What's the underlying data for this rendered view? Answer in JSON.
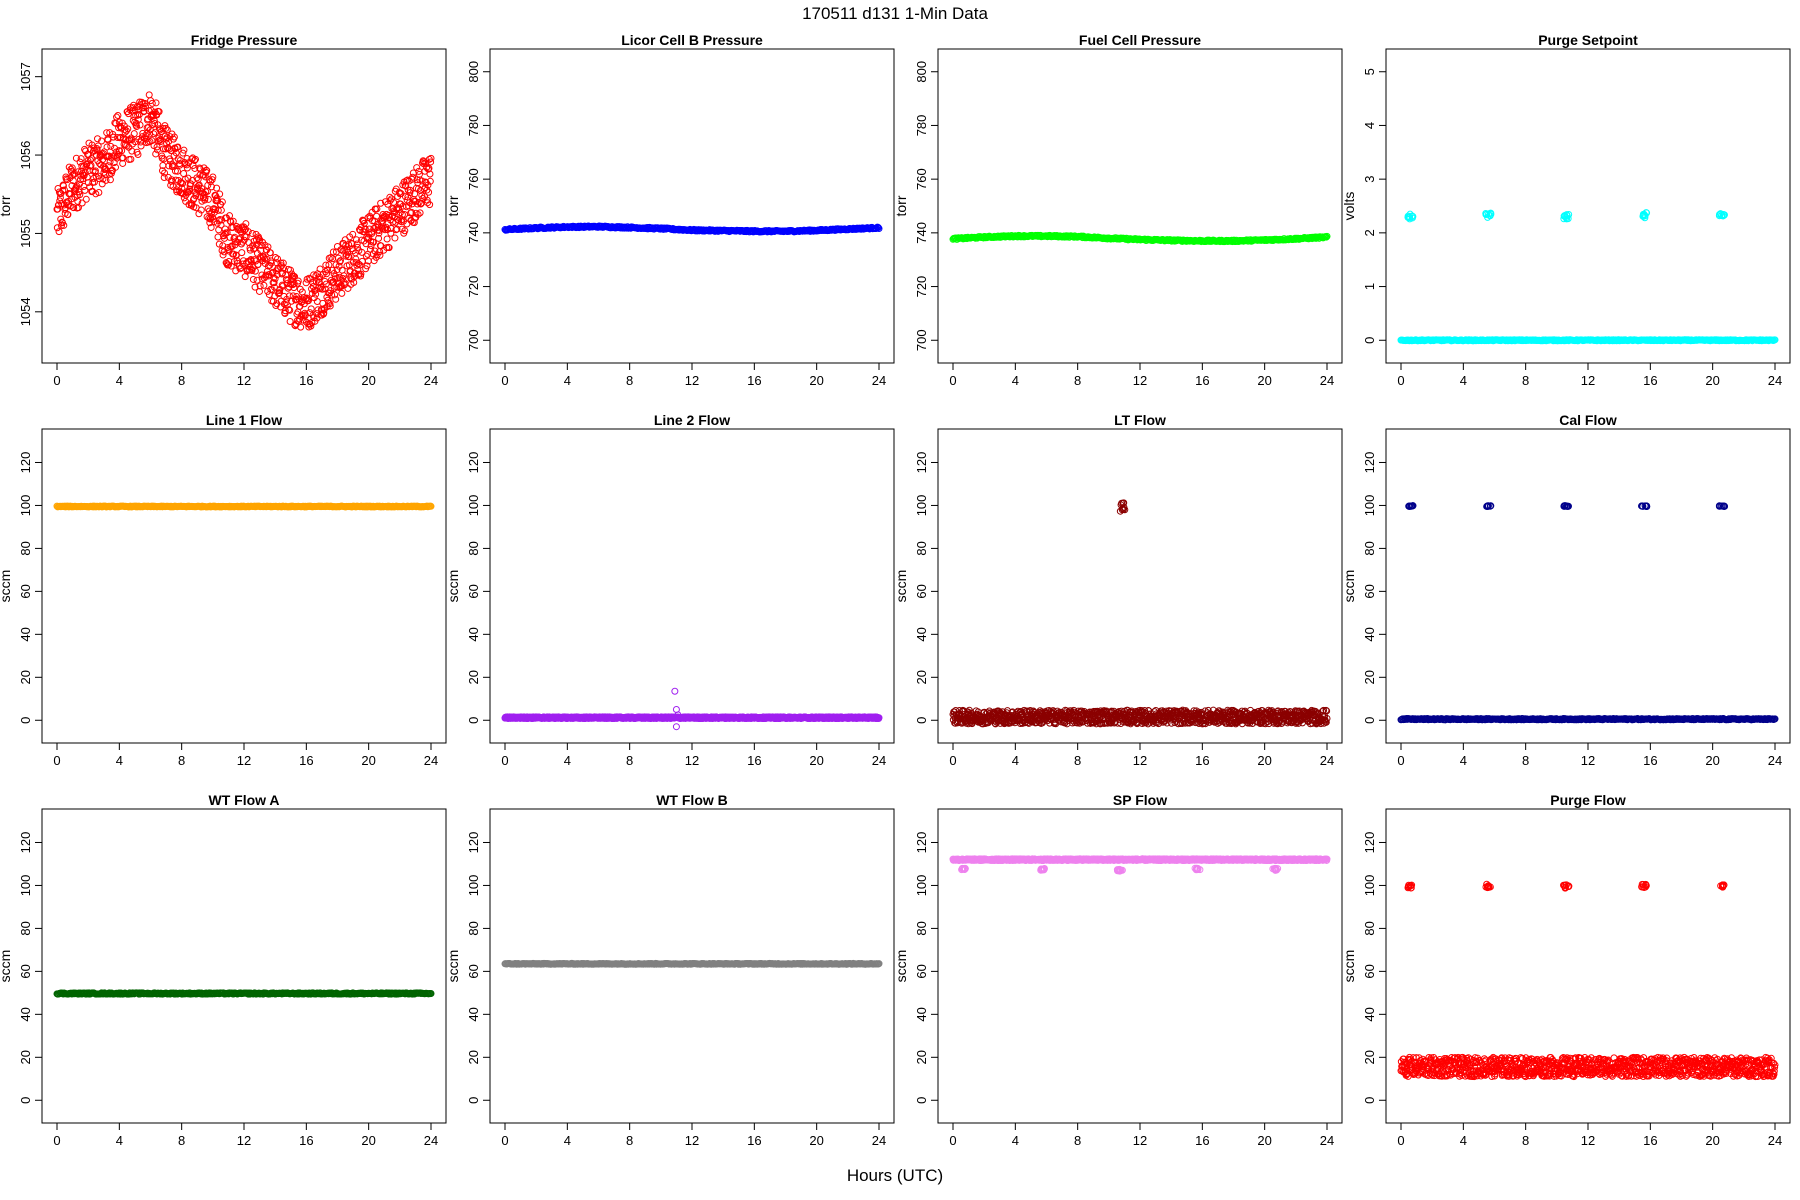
{
  "main_title": "170511    d131    1-Min Data",
  "x_axis_label": "Hours (UTC)",
  "chart_data": [
    {
      "type": "scatter",
      "title": "Fridge Pressure",
      "ylabel": "torr",
      "color": "#ff0000",
      "marker": "open",
      "xlim": [
        0,
        24
      ],
      "xticks": [
        0,
        4,
        8,
        12,
        16,
        20,
        24
      ],
      "ylim": [
        1053.5,
        1057.2
      ],
      "yticks": [
        1054,
        1055,
        1056,
        1057
      ],
      "series": [
        {
          "x": [
            0,
            1,
            2,
            3,
            4,
            5,
            6,
            7,
            8,
            9,
            10,
            11,
            12,
            13,
            14,
            15,
            16,
            17,
            18,
            19,
            20,
            21,
            22,
            23,
            24
          ],
          "y": [
            1055.2,
            1055.6,
            1055.8,
            1055.9,
            1056.2,
            1056.3,
            1056.5,
            1056.0,
            1055.8,
            1055.6,
            1055.4,
            1054.9,
            1054.8,
            1054.6,
            1054.4,
            1054.2,
            1054.1,
            1054.3,
            1054.5,
            1054.7,
            1054.9,
            1055.1,
            1055.3,
            1055.5,
            1055.7
          ],
          "spread": 0.35
        }
      ]
    },
    {
      "type": "scatter",
      "title": "Licor Cell B Pressure",
      "ylabel": "torr",
      "color": "#0000ff",
      "marker": "open",
      "xlim": [
        0,
        24
      ],
      "xticks": [
        0,
        4,
        8,
        12,
        16,
        20,
        24
      ],
      "ylim": [
        696,
        804
      ],
      "yticks": [
        700,
        720,
        740,
        760,
        780,
        800
      ],
      "series": [
        {
          "x": [
            0,
            2,
            4,
            6,
            8,
            10,
            12,
            14,
            16,
            18,
            20,
            22,
            24
          ],
          "y": [
            741.2,
            741.8,
            742.2,
            742.3,
            742.0,
            741.6,
            741.0,
            740.8,
            740.6,
            740.6,
            740.9,
            741.4,
            741.9
          ],
          "spread": 0.3
        }
      ]
    },
    {
      "type": "scatter",
      "title": "Fuel Cell Pressure",
      "ylabel": "torr",
      "color": "#00ff00",
      "marker": "open",
      "xlim": [
        0,
        24
      ],
      "xticks": [
        0,
        4,
        8,
        12,
        16,
        20,
        24
      ],
      "ylim": [
        696,
        804
      ],
      "yticks": [
        700,
        720,
        740,
        760,
        780,
        800
      ],
      "series": [
        {
          "x": [
            0,
            2,
            4,
            6,
            8,
            10,
            12,
            14,
            16,
            18,
            20,
            22,
            24
          ],
          "y": [
            737.8,
            738.4,
            738.8,
            738.8,
            738.6,
            738.0,
            737.5,
            737.2,
            737.0,
            737.0,
            737.3,
            737.8,
            738.4
          ],
          "spread": 0.3
        }
      ]
    },
    {
      "type": "scatter",
      "title": "Purge Setpoint",
      "ylabel": "volts",
      "color": "#00ffff",
      "marker": "open",
      "xlim": [
        0,
        24
      ],
      "xticks": [
        0,
        4,
        8,
        12,
        16,
        20,
        24
      ],
      "ylim": [
        -0.2,
        5.2
      ],
      "yticks": [
        0,
        1,
        2,
        3,
        4,
        5
      ],
      "series": [
        {
          "x": [
            0,
            24
          ],
          "y": [
            0.0,
            0.0
          ],
          "spread": 0.01
        },
        {
          "x": [
            0.6,
            5.6,
            10.6,
            15.6,
            20.6
          ],
          "y": [
            2.3,
            2.32,
            2.3,
            2.33,
            2.32
          ],
          "spread": 0.05,
          "cluster": true
        }
      ]
    },
    {
      "type": "scatter",
      "title": "Line 1 Flow",
      "ylabel": "sccm",
      "color": "#ffa500",
      "marker": "open",
      "xlim": [
        0,
        24
      ],
      "xticks": [
        0,
        4,
        8,
        12,
        16,
        20,
        24
      ],
      "ylim": [
        -5,
        130
      ],
      "yticks": [
        0,
        20,
        40,
        60,
        80,
        100,
        120
      ],
      "series": [
        {
          "x": [
            0,
            24
          ],
          "y": [
            99.5,
            99.5
          ],
          "spread": 0.2
        }
      ]
    },
    {
      "type": "scatter",
      "title": "Line 2 Flow",
      "ylabel": "sccm",
      "color": "#a020f0",
      "marker": "open",
      "xlim": [
        0,
        24
      ],
      "xticks": [
        0,
        4,
        8,
        12,
        16,
        20,
        24
      ],
      "ylim": [
        -5,
        130
      ],
      "yticks": [
        0,
        20,
        40,
        60,
        80,
        100,
        120
      ],
      "series": [
        {
          "x": [
            0,
            24
          ],
          "y": [
            1.2,
            1.2
          ],
          "spread": 0.4
        },
        {
          "x": [
            10.9,
            11.0,
            11.0,
            11.1
          ],
          "y": [
            13.5,
            5.0,
            -3.0,
            2.5
          ],
          "spread": 0,
          "points": true
        }
      ]
    },
    {
      "type": "scatter",
      "title": "LT Flow",
      "ylabel": "sccm",
      "color": "#8b0000",
      "marker": "open",
      "xlim": [
        0,
        24
      ],
      "xticks": [
        0,
        4,
        8,
        12,
        16,
        20,
        24
      ],
      "ylim": [
        -5,
        130
      ],
      "yticks": [
        0,
        20,
        40,
        60,
        80,
        100,
        120
      ],
      "series": [
        {
          "x": [
            0,
            24
          ],
          "y": [
            1.5,
            1.5
          ],
          "spread": 3.2
        },
        {
          "x": [
            10.9
          ],
          "y": [
            99.5
          ],
          "spread": 2.2,
          "cluster": true
        }
      ]
    },
    {
      "type": "scatter",
      "title": "Cal Flow",
      "ylabel": "sccm",
      "color": "#00008b",
      "marker": "open",
      "xlim": [
        0,
        24
      ],
      "xticks": [
        0,
        4,
        8,
        12,
        16,
        20,
        24
      ],
      "ylim": [
        -5,
        130
      ],
      "yticks": [
        0,
        20,
        40,
        60,
        80,
        100,
        120
      ],
      "series": [
        {
          "x": [
            0,
            24
          ],
          "y": [
            0.5,
            0.5
          ],
          "spread": 0.3
        },
        {
          "x": [
            0.6,
            5.6,
            10.6,
            15.6,
            20.6
          ],
          "y": [
            99.7,
            99.7,
            99.7,
            99.7,
            99.7
          ],
          "spread": 0.2,
          "cluster": true
        }
      ]
    },
    {
      "type": "scatter",
      "title": "WT Flow A",
      "ylabel": "sccm",
      "color": "#006400",
      "marker": "open",
      "xlim": [
        0,
        24
      ],
      "xticks": [
        0,
        4,
        8,
        12,
        16,
        20,
        24
      ],
      "ylim": [
        -5,
        130
      ],
      "yticks": [
        0,
        20,
        40,
        60,
        80,
        100,
        120
      ],
      "series": [
        {
          "x": [
            0,
            24
          ],
          "y": [
            49.7,
            49.7
          ],
          "spread": 0.3
        }
      ]
    },
    {
      "type": "scatter",
      "title": "WT Flow B",
      "ylabel": "sccm",
      "color": "#808080",
      "marker": "open",
      "xlim": [
        0,
        24
      ],
      "xticks": [
        0,
        4,
        8,
        12,
        16,
        20,
        24
      ],
      "ylim": [
        -5,
        130
      ],
      "yticks": [
        0,
        20,
        40,
        60,
        80,
        100,
        120
      ],
      "series": [
        {
          "x": [
            0,
            24
          ],
          "y": [
            63.5,
            63.5
          ],
          "spread": 0.2
        }
      ]
    },
    {
      "type": "scatter",
      "title": "SP Flow",
      "ylabel": "sccm",
      "color": "#ee82ee",
      "marker": "open",
      "xlim": [
        0,
        24
      ],
      "xticks": [
        0,
        4,
        8,
        12,
        16,
        20,
        24
      ],
      "ylim": [
        -5,
        130
      ],
      "yticks": [
        0,
        20,
        40,
        60,
        80,
        100,
        120
      ],
      "series": [
        {
          "x": [
            0,
            24
          ],
          "y": [
            112,
            112
          ],
          "spread": 0.4
        },
        {
          "x": [
            0.7,
            5.7,
            10.7,
            15.7,
            20.7
          ],
          "y": [
            107.5,
            107.5,
            107.0,
            107.5,
            107.5
          ],
          "spread": 0.5,
          "cluster": true
        }
      ]
    },
    {
      "type": "scatter",
      "title": "Purge Flow",
      "ylabel": "sccm",
      "color": "#ff0000",
      "marker": "open",
      "xlim": [
        0,
        24
      ],
      "xticks": [
        0,
        4,
        8,
        12,
        16,
        20,
        24
      ],
      "ylim": [
        -5,
        130
      ],
      "yticks": [
        0,
        20,
        40,
        60,
        80,
        100,
        120
      ],
      "series": [
        {
          "x": [
            0,
            24
          ],
          "y": [
            15.5,
            15.5
          ],
          "spread": 4.5
        },
        {
          "x": [
            0.6,
            5.6,
            10.6,
            15.6,
            20.6
          ],
          "y": [
            99.5,
            99.8,
            99.5,
            99.8,
            99.8
          ],
          "spread": 0.8,
          "cluster": true
        }
      ]
    }
  ]
}
